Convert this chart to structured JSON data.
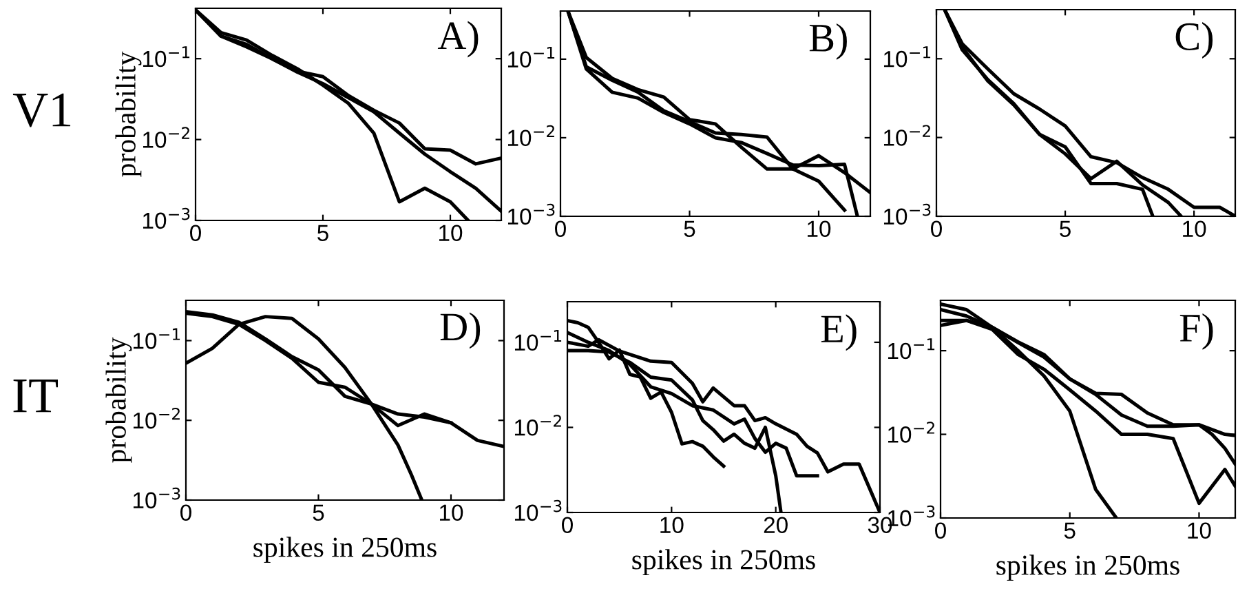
{
  "chart_data": [
    {
      "type": "line",
      "title": "A)",
      "ylabel": "probability",
      "annotations": [
        "V1"
      ],
      "log": "y",
      "xlim": [
        0,
        12
      ],
      "ylim": [
        0.001,
        0.42
      ],
      "xticks": [
        0,
        5,
        10
      ],
      "yticks": [
        {
          "value": 0.001,
          "label": "10$^{−3}$"
        },
        {
          "value": 0.01,
          "label": "10$^{−2}$"
        },
        {
          "value": 0.1,
          "label": "10$^{−1}$"
        }
      ],
      "grid": false,
      "series": [
        {
          "color": "#000000",
          "x": [
            0,
            1,
            2,
            3,
            4,
            5,
            6,
            7,
            8,
            9,
            10,
            11,
            12
          ],
          "values": [
            0.4,
            0.19,
            0.15,
            0.1,
            0.07,
            0.06,
            0.035,
            0.023,
            0.016,
            0.0077,
            0.0074,
            0.005,
            0.0059
          ]
        },
        {
          "color": "#000000",
          "x": [
            0,
            1,
            2,
            3,
            4,
            5,
            6,
            7,
            8,
            9,
            10,
            11,
            12
          ],
          "values": [
            0.4,
            0.19,
            0.14,
            0.1,
            0.068,
            0.049,
            0.033,
            0.022,
            0.012,
            0.0066,
            0.004,
            0.0025,
            0.0013
          ]
        },
        {
          "color": "#000000",
          "x": [
            0,
            1,
            2,
            3,
            4,
            5,
            6,
            7,
            8,
            9,
            10,
            10.7
          ],
          "values": [
            0.4,
            0.21,
            0.17,
            0.11,
            0.075,
            0.047,
            0.028,
            0.012,
            0.0017,
            0.0025,
            0.0017,
            0.001
          ]
        }
      ]
    },
    {
      "type": "line",
      "title": "B)",
      "log": "y",
      "xlim": [
        0,
        12
      ],
      "ylim": [
        0.001,
        0.41
      ],
      "xticks": [
        0,
        5,
        10
      ],
      "yticks": [
        {
          "value": 0.001,
          "label": "10$^{−3}$"
        },
        {
          "value": 0.01,
          "label": "10$^{−2}$"
        },
        {
          "value": 0.1,
          "label": "10$^{−1}$"
        }
      ],
      "grid": false,
      "series": [
        {
          "color": "#000000",
          "x": [
            0.3,
            1,
            2,
            3,
            4,
            5,
            6,
            7,
            8,
            9,
            10,
            11,
            12
          ],
          "values": [
            0.4,
            0.105,
            0.057,
            0.041,
            0.033,
            0.017,
            0.015,
            0.0076,
            0.004,
            0.004,
            0.0059,
            0.0036,
            0.002
          ]
        },
        {
          "color": "#000000",
          "x": [
            0.3,
            1,
            2,
            3,
            4,
            5,
            6,
            7,
            8,
            9,
            10,
            11
          ],
          "values": [
            0.4,
            0.08,
            0.054,
            0.038,
            0.022,
            0.016,
            0.0115,
            0.011,
            0.0102,
            0.004,
            0.0028,
            0.0012
          ]
        },
        {
          "color": "#000000",
          "x": [
            0.3,
            1,
            2,
            3,
            4,
            5,
            6,
            7,
            8,
            9,
            10,
            11,
            11.5
          ],
          "values": [
            0.4,
            0.075,
            0.038,
            0.032,
            0.021,
            0.015,
            0.01,
            0.0087,
            0.0063,
            0.0045,
            0.0044,
            0.0046,
            0.001
          ]
        }
      ]
    },
    {
      "type": "line",
      "title": "C)",
      "log": "y",
      "xlim": [
        0,
        11.6
      ],
      "ylim": [
        0.001,
        0.42
      ],
      "xticks": [
        0,
        5,
        10
      ],
      "yticks": [
        {
          "value": 0.001,
          "label": "10$^{−3}$"
        },
        {
          "value": 0.01,
          "label": "10$^{−2}$"
        },
        {
          "value": 0.1,
          "label": "10$^{−1}$"
        }
      ],
      "grid": false,
      "series": [
        {
          "color": "#000000",
          "x": [
            0.35,
            1,
            2,
            3,
            4,
            5,
            6,
            7,
            8,
            9,
            10,
            11,
            11.6
          ],
          "values": [
            0.4,
            0.155,
            0.074,
            0.036,
            0.023,
            0.014,
            0.0057,
            0.0048,
            0.0031,
            0.0022,
            0.0013,
            0.0013,
            0.001
          ]
        },
        {
          "color": "#000000",
          "x": [
            0.35,
            1,
            2,
            3,
            4,
            5,
            6,
            7,
            8,
            9,
            9.5
          ],
          "values": [
            0.4,
            0.13,
            0.054,
            0.027,
            0.011,
            0.0062,
            0.003,
            0.005,
            0.0025,
            0.0015,
            0.001
          ]
        },
        {
          "color": "#000000",
          "x": [
            0.35,
            1,
            2,
            3,
            4,
            5,
            6,
            7,
            8,
            8.4
          ],
          "values": [
            0.4,
            0.14,
            0.052,
            0.026,
            0.011,
            0.0076,
            0.0026,
            0.0026,
            0.0022,
            0.001
          ]
        }
      ]
    },
    {
      "type": "line",
      "title": "D)",
      "xlabel": "spikes in 250ms",
      "ylabel": "probability",
      "annotations": [
        "IT"
      ],
      "log": "y",
      "xlim": [
        0,
        12
      ],
      "ylim": [
        0.001,
        0.32
      ],
      "xticks": [
        0,
        5,
        10
      ],
      "yticks": [
        {
          "value": 0.001,
          "label": "10$^{−3}$"
        },
        {
          "value": 0.01,
          "label": "10$^{−2}$"
        },
        {
          "value": 0.1,
          "label": "10$^{−1}$"
        }
      ],
      "grid": false,
      "series": [
        {
          "color": "#000000",
          "x": [
            0,
            1,
            2,
            3,
            4,
            5,
            6,
            7,
            8,
            9,
            10,
            11,
            12
          ],
          "values": [
            0.23,
            0.21,
            0.17,
            0.105,
            0.063,
            0.043,
            0.02,
            0.016,
            0.0086,
            0.012,
            0.0093,
            0.0056,
            0.0047
          ]
        },
        {
          "color": "#000000",
          "x": [
            0,
            1,
            2,
            3,
            4,
            5,
            6,
            7,
            8,
            9,
            10
          ],
          "values": [
            0.22,
            0.2,
            0.16,
            0.1,
            0.06,
            0.03,
            0.026,
            0.016,
            0.012,
            0.011,
            0.0093
          ]
        },
        {
          "color": "#000000",
          "x": [
            0,
            1,
            2,
            3,
            4,
            5,
            6,
            7,
            8,
            8.5,
            8.9
          ],
          "values": [
            0.052,
            0.08,
            0.16,
            0.2,
            0.19,
            0.105,
            0.046,
            0.016,
            0.0049,
            0.0021,
            0.001
          ]
        }
      ]
    },
    {
      "type": "line",
      "title": "E)",
      "xlabel": "spikes in 250ms",
      "log": "y",
      "xlim": [
        0,
        30
      ],
      "ylim": [
        0.001,
        0.3
      ],
      "xticks": [
        0,
        10,
        20,
        30
      ],
      "yticks": [
        {
          "value": 0.001,
          "label": "10$^{−3}$"
        },
        {
          "value": 0.01,
          "label": "10$^{−2}$"
        },
        {
          "value": 0.1,
          "label": "10$^{−1}$"
        }
      ],
      "grid": false,
      "series": [
        {
          "color": "#000000",
          "x": [
            0,
            2,
            3,
            5,
            8,
            10,
            12,
            13,
            14,
            16,
            17,
            18,
            19,
            20,
            22,
            23,
            24,
            25,
            26.5,
            28,
            30
          ],
          "values": [
            0.1,
            0.09,
            0.107,
            0.079,
            0.06,
            0.058,
            0.033,
            0.02,
            0.029,
            0.018,
            0.018,
            0.012,
            0.013,
            0.011,
            0.0083,
            0.006,
            0.005,
            0.003,
            0.0037,
            0.0037,
            0.001
          ]
        },
        {
          "color": "#000000",
          "x": [
            0,
            2,
            4,
            6,
            8,
            10,
            12,
            13,
            14,
            15,
            16,
            17,
            18,
            19,
            20,
            20.5
          ],
          "values": [
            0.08,
            0.08,
            0.077,
            0.058,
            0.039,
            0.036,
            0.021,
            0.012,
            0.0094,
            0.0069,
            0.0083,
            0.0065,
            0.0057,
            0.01,
            0.0027,
            0.001
          ]
        },
        {
          "color": "#000000",
          "x": [
            0,
            1,
            2,
            3,
            4,
            5,
            6,
            7,
            8,
            9,
            10,
            11,
            12,
            13,
            14,
            15
          ],
          "values": [
            0.18,
            0.17,
            0.15,
            0.1,
            0.064,
            0.081,
            0.042,
            0.039,
            0.022,
            0.026,
            0.015,
            0.0064,
            0.0068,
            0.006,
            0.0045,
            0.0035
          ]
        },
        {
          "color": "#000000",
          "x": [
            0,
            2,
            4,
            6,
            8,
            10,
            12,
            14,
            16,
            17,
            18,
            19,
            20,
            21,
            22,
            23,
            24
          ],
          "values": [
            0.13,
            0.1,
            0.08,
            0.055,
            0.03,
            0.025,
            0.018,
            0.016,
            0.011,
            0.0125,
            0.0074,
            0.0051,
            0.0065,
            0.0057,
            0.0027,
            0.0027,
            0.0027
          ]
        }
      ]
    },
    {
      "type": "line",
      "title": "F)",
      "xlabel": "spikes in 250ms",
      "log": "y",
      "xlim": [
        0,
        11.4
      ],
      "ylim": [
        0.001,
        0.4
      ],
      "xticks": [
        0,
        5,
        10
      ],
      "yticks": [
        {
          "value": 0.001,
          "label": "10$^{−3}$"
        },
        {
          "value": 0.01,
          "label": "10$^{−2}$"
        },
        {
          "value": 0.1,
          "label": "10$^{−1}$"
        }
      ],
      "grid": false,
      "series": [
        {
          "color": "#000000",
          "x": [
            0,
            1,
            2,
            3,
            4,
            5,
            6,
            6.8
          ],
          "values": [
            0.36,
            0.31,
            0.19,
            0.1,
            0.05,
            0.019,
            0.0022,
            0.001
          ]
        },
        {
          "color": "#000000",
          "x": [
            0,
            1,
            2,
            3,
            4,
            5,
            6,
            7,
            8,
            9,
            10,
            11,
            11.4
          ],
          "values": [
            0.31,
            0.26,
            0.19,
            0.125,
            0.084,
            0.046,
            0.031,
            0.03,
            0.018,
            0.013,
            0.013,
            0.01,
            0.0097
          ]
        },
        {
          "color": "#000000",
          "x": [
            0,
            1,
            2,
            3,
            4,
            5,
            6,
            7,
            8,
            9,
            10,
            10.5,
            11,
            11.4
          ],
          "values": [
            0.23,
            0.23,
            0.19,
            0.127,
            0.09,
            0.046,
            0.03,
            0.017,
            0.0125,
            0.0125,
            0.013,
            0.01,
            0.0068,
            0.0044
          ]
        },
        {
          "color": "#000000",
          "x": [
            0,
            1,
            2,
            3,
            4,
            5,
            6,
            7,
            8,
            9,
            10,
            11,
            11.4
          ],
          "values": [
            0.2,
            0.23,
            0.18,
            0.09,
            0.06,
            0.034,
            0.019,
            0.01,
            0.01,
            0.0089,
            0.0015,
            0.0038,
            0.0024
          ]
        }
      ]
    }
  ]
}
